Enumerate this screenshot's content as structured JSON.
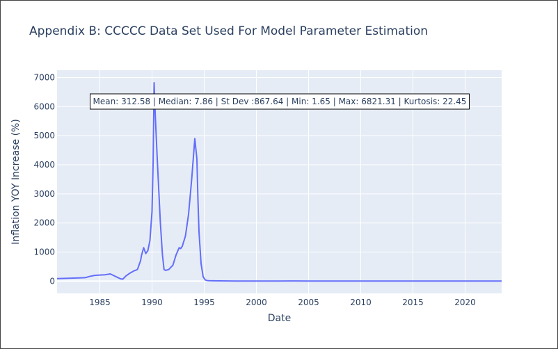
{
  "chart_data": {
    "type": "line",
    "title": "Appendix B: CCCCC Data Set Used For Model Parameter Estimation",
    "xlabel": "Date",
    "ylabel": "Inflation YOY Increase (%)",
    "xlim": [
      1980.9,
      2023.5
    ],
    "ylim": [
      -420,
      7250
    ],
    "x_ticks": [
      1985,
      1990,
      1995,
      2000,
      2005,
      2010,
      2015,
      2020
    ],
    "y_ticks": [
      0,
      1000,
      2000,
      3000,
      4000,
      5000,
      6000,
      7000
    ],
    "grid": true,
    "line_color": "#636efa",
    "plot_bg": "#e5ecf6",
    "annotation": "Mean: 312.58 | Median: 7.86 | St Dev :867.64 | Min: 1.65 | Max: 6821.31 | Kurtosis: 22.45",
    "series": [
      {
        "x": [
          1980.9,
          1982.0,
          1983.0,
          1983.6,
          1984.0,
          1984.5,
          1985.0,
          1985.5,
          1986.0,
          1986.4,
          1986.8,
          1987.0,
          1987.2,
          1987.5,
          1987.9,
          1988.3,
          1988.6,
          1988.9,
          1989.0,
          1989.2,
          1989.4,
          1989.6,
          1989.8,
          1990.0,
          1990.1,
          1990.2,
          1990.3,
          1990.5,
          1990.8,
          1991.0,
          1991.15,
          1991.3,
          1991.6,
          1992.0,
          1992.3,
          1992.6,
          1992.75,
          1992.9,
          1993.2,
          1993.5,
          1993.8,
          1994.1,
          1994.3,
          1994.4,
          1994.5,
          1994.7,
          1994.9,
          1995.1,
          1995.3,
          1995.5,
          1995.8,
          1996.5,
          1998.0,
          2000.0,
          2002.0,
          2003.5,
          2005.0,
          2010.0,
          2015.0,
          2020.0,
          2023.5
        ],
        "y": [
          90,
          100,
          110,
          120,
          160,
          200,
          210,
          220,
          250,
          180,
          110,
          80,
          70,
          180,
          280,
          360,
          400,
          700,
          900,
          1150,
          950,
          1050,
          1400,
          2400,
          4000,
          6821,
          5800,
          4200,
          2000,
          900,
          400,
          370,
          400,
          550,
          900,
          1150,
          1120,
          1200,
          1550,
          2300,
          3500,
          4900,
          4200,
          2800,
          1700,
          600,
          150,
          40,
          20,
          15,
          12,
          10,
          5,
          3,
          5,
          8,
          6,
          4,
          3,
          2,
          2
        ]
      }
    ]
  }
}
